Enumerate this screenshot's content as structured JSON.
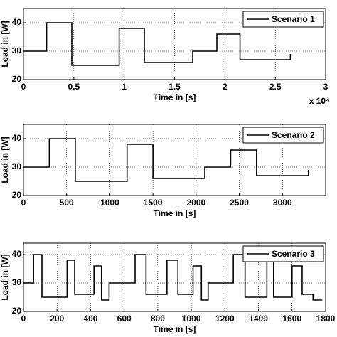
{
  "chart_data": [
    {
      "type": "line",
      "xlabel": "Time in  [s]",
      "ylabel": "Load in [W]",
      "annotation": "x 10⁴",
      "xlim": [
        0,
        30000
      ],
      "ylim": [
        20,
        45
      ],
      "xticks": [
        0,
        {
          "value": 5000,
          "label": "0.5"
        },
        {
          "value": 10000,
          "label": "1"
        },
        {
          "value": 15000,
          "label": "1.5"
        },
        {
          "value": 20000,
          "label": "2"
        },
        {
          "value": 25000,
          "label": "2.5"
        },
        {
          "value": 30000,
          "label": "3"
        }
      ],
      "yticks": [
        20,
        30,
        40
      ],
      "grid": true,
      "legend": "upper right",
      "series": [
        {
          "name": "Scenario 1",
          "color": "#000000",
          "x": [
            0,
            2300,
            2300,
            4800,
            4800,
            9500,
            9500,
            12000,
            12000,
            16800,
            16800,
            19200,
            19200,
            21500,
            21500,
            26500,
            26500
          ],
          "values": [
            30,
            30,
            40,
            40,
            25,
            25,
            38,
            38,
            26,
            26,
            30,
            30,
            36,
            36,
            27,
            27,
            29
          ]
        }
      ]
    },
    {
      "type": "line",
      "xlabel": "Time in  [s]",
      "ylabel": "Load in [W]",
      "xlim": [
        0,
        3500
      ],
      "ylim": [
        20,
        45
      ],
      "xticks": [
        0,
        500,
        1000,
        1500,
        2000,
        2500,
        3000
      ],
      "yticks": [
        20,
        30,
        40
      ],
      "grid": true,
      "legend": "upper right",
      "series": [
        {
          "name": "Scenario 2",
          "color": "#000000",
          "x": [
            0,
            300,
            300,
            600,
            600,
            1200,
            1200,
            1500,
            1500,
            2100,
            2100,
            2400,
            2400,
            2700,
            2700,
            3300,
            3300
          ],
          "values": [
            30,
            30,
            40,
            40,
            25,
            25,
            38,
            38,
            26,
            26,
            30,
            30,
            36,
            36,
            27,
            27,
            29
          ]
        }
      ]
    },
    {
      "type": "line",
      "xlabel": "Time in  [s]",
      "ylabel": "Load in [W]",
      "xlim": [
        0,
        1800
      ],
      "ylim": [
        20,
        44
      ],
      "xticks": [
        0,
        200,
        400,
        600,
        800,
        1000,
        1200,
        1400,
        1600,
        1800
      ],
      "yticks": [
        20,
        30,
        40
      ],
      "grid": true,
      "legend": "upper right",
      "series": [
        {
          "name": "Scenario 3",
          "color": "#000000",
          "x": [
            0,
            60,
            60,
            110,
            110,
            260,
            260,
            305,
            305,
            420,
            420,
            465,
            465,
            510,
            510,
            665,
            665,
            730,
            730,
            855,
            855,
            920,
            920,
            1010,
            1010,
            1060,
            1060,
            1100,
            1100,
            1250,
            1250,
            1320,
            1320,
            1450,
            1450,
            1490,
            1490,
            1600,
            1600,
            1660,
            1660,
            1725,
            1725,
            1780
          ],
          "values": [
            30,
            30,
            40,
            40,
            25,
            25,
            38,
            38,
            26,
            26,
            36,
            36,
            24,
            24,
            30,
            30,
            40,
            40,
            26,
            26,
            38,
            38,
            26,
            26,
            36,
            36,
            24,
            24,
            30,
            30,
            40,
            40,
            25,
            25,
            38,
            38,
            25,
            25,
            36,
            36,
            26,
            26,
            24,
            24
          ]
        }
      ]
    }
  ]
}
